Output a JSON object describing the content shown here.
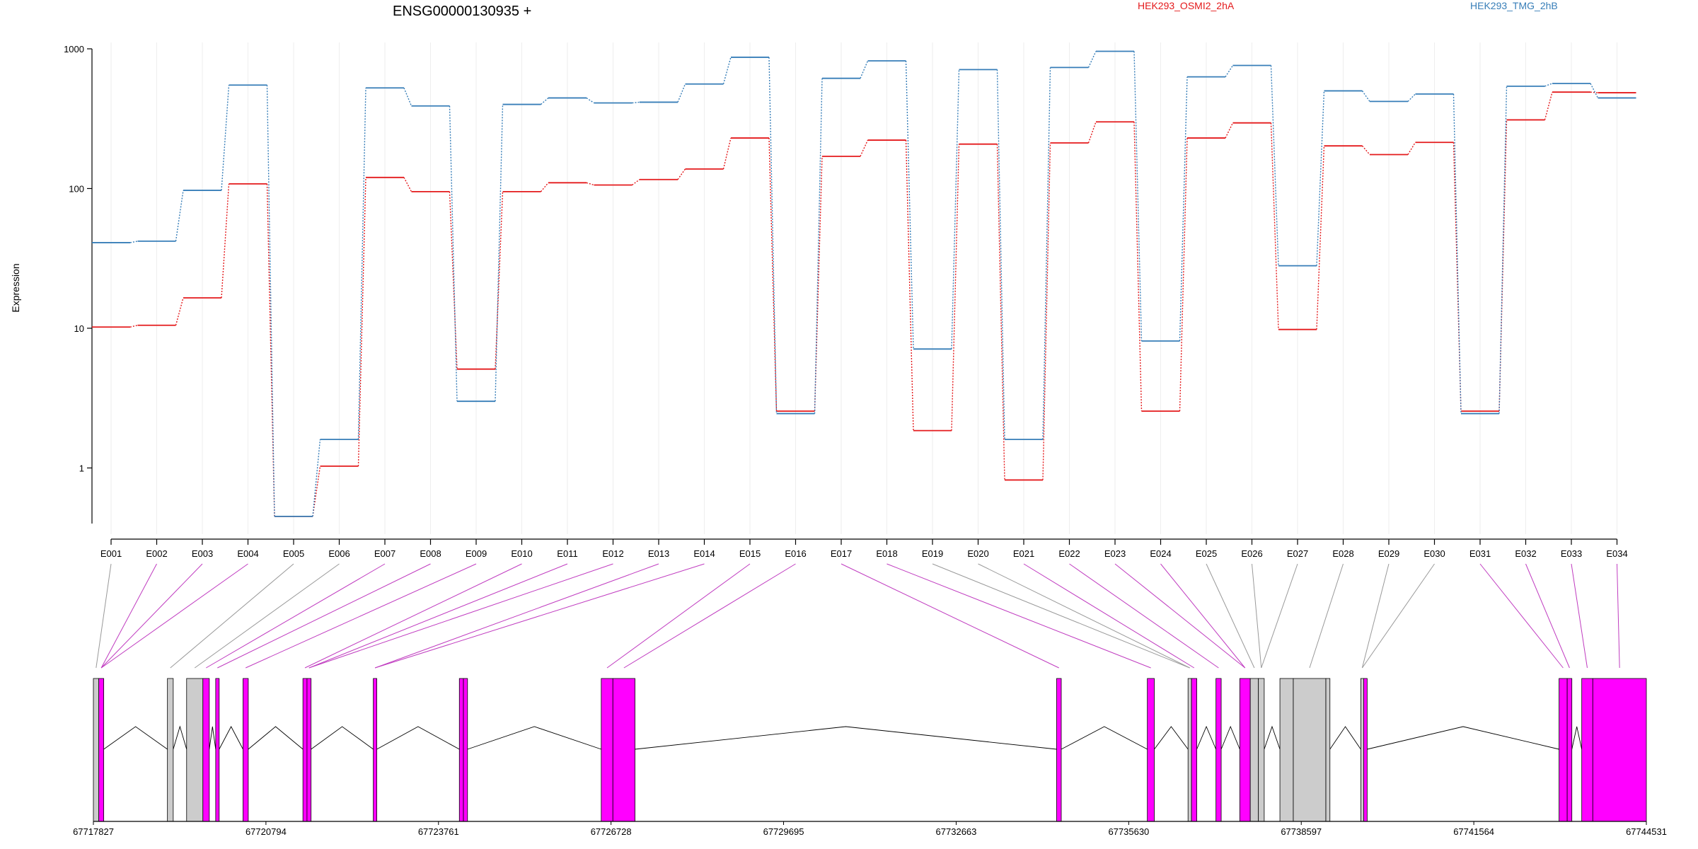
{
  "chart_data": {
    "type": "line",
    "title": "ENSG00000130935 +",
    "ylabel": "Expression",
    "yscale": "log",
    "ylim": [
      0.4,
      1000
    ],
    "yticks": [
      "1000",
      "100",
      "10",
      "1"
    ],
    "grid": "vertical",
    "legend_position": "top",
    "colors": {
      "HEK293_OSMI2_2hA": "#e41a1c",
      "HEK293_TMG_2hB": "#377eb8",
      "exon_diff": "#ff00ff",
      "exon_other": "#cccccc"
    },
    "categories": [
      "E001",
      "E002",
      "E003",
      "E004",
      "E005",
      "E006",
      "E007",
      "E008",
      "E009",
      "E010",
      "E011",
      "E012",
      "E013",
      "E014",
      "E015",
      "E016",
      "E017",
      "E018",
      "E019",
      "E020",
      "E021",
      "E022",
      "E023",
      "E024",
      "E025",
      "E026",
      "E027",
      "E028",
      "E029",
      "E030",
      "E031",
      "E032",
      "E033",
      "E034"
    ],
    "series": [
      {
        "name": "HEK293_OSMI2_2hA",
        "values": [
          10.2,
          10.5,
          16.5,
          108,
          0.45,
          1.03,
          120,
          95,
          5.1,
          95,
          110,
          106,
          116,
          138,
          230,
          2.55,
          170,
          222,
          1.85,
          208,
          0.82,
          212,
          300,
          2.55,
          230,
          295,
          9.8,
          202,
          175,
          214,
          2.55,
          310,
          490,
          485
        ]
      },
      {
        "name": "HEK293_TMG_2hB",
        "values": [
          41,
          42,
          97,
          550,
          0.45,
          1.6,
          525,
          390,
          3.0,
          400,
          445,
          410,
          415,
          560,
          870,
          2.45,
          615,
          820,
          7.1,
          710,
          1.6,
          735,
          960,
          8.1,
          630,
          760,
          28,
          500,
          420,
          475,
          2.45,
          540,
          565,
          445
        ]
      }
    ],
    "genomic_axis": {
      "ticks": [
        "67717827",
        "67720794",
        "67723761",
        "67726728",
        "67729695",
        "67732663",
        "67735630",
        "67738597",
        "67741564",
        "67744531"
      ],
      "range": [
        67717827,
        67744531
      ]
    },
    "exons": [
      {
        "start": 67717827,
        "end": 67717920,
        "diff": false
      },
      {
        "start": 67717920,
        "end": 67718005,
        "diff": true
      },
      {
        "start": 67719100,
        "end": 67719200,
        "diff": false
      },
      {
        "start": 67719430,
        "end": 67719710,
        "diff": false
      },
      {
        "start": 67719710,
        "end": 67719820,
        "diff": true
      },
      {
        "start": 67719930,
        "end": 67719990,
        "diff": true
      },
      {
        "start": 67720400,
        "end": 67720490,
        "diff": true
      },
      {
        "start": 67721430,
        "end": 67721500,
        "diff": true
      },
      {
        "start": 67721500,
        "end": 67721570,
        "diff": true
      },
      {
        "start": 67722640,
        "end": 67722700,
        "diff": true
      },
      {
        "start": 67724120,
        "end": 67724190,
        "diff": true
      },
      {
        "start": 67724190,
        "end": 67724260,
        "diff": true
      },
      {
        "start": 67726560,
        "end": 67726760,
        "diff": true
      },
      {
        "start": 67726760,
        "end": 67727140,
        "diff": true
      },
      {
        "start": 67734390,
        "end": 67734470,
        "diff": true
      },
      {
        "start": 67735950,
        "end": 67736070,
        "diff": true
      },
      {
        "start": 67736650,
        "end": 67736710,
        "diff": false
      },
      {
        "start": 67736710,
        "end": 67736800,
        "diff": true
      },
      {
        "start": 67737130,
        "end": 67737220,
        "diff": true
      },
      {
        "start": 67737540,
        "end": 67737720,
        "diff": true
      },
      {
        "start": 67737720,
        "end": 67737860,
        "diff": false
      },
      {
        "start": 67737860,
        "end": 67737960,
        "diff": false
      },
      {
        "start": 67738230,
        "end": 67738460,
        "diff": false
      },
      {
        "start": 67738460,
        "end": 67739020,
        "diff": false
      },
      {
        "start": 67739020,
        "end": 67739090,
        "diff": false
      },
      {
        "start": 67739620,
        "end": 67739670,
        "diff": false
      },
      {
        "start": 67739670,
        "end": 67739730,
        "diff": true
      },
      {
        "start": 67743030,
        "end": 67743170,
        "diff": true
      },
      {
        "start": 67743170,
        "end": 67743250,
        "diff": true
      },
      {
        "start": 67743420,
        "end": 67743610,
        "diff": true
      },
      {
        "start": 67743610,
        "end": 67744531,
        "diff": true
      }
    ],
    "exon_links": [
      0,
      1,
      1,
      1,
      2,
      3,
      4,
      5,
      6,
      7,
      8,
      8,
      9,
      9,
      12,
      13,
      14,
      15,
      16,
      16,
      17,
      18,
      19,
      19,
      20,
      21,
      21,
      23,
      25,
      25,
      27,
      28,
      29,
      30
    ]
  }
}
